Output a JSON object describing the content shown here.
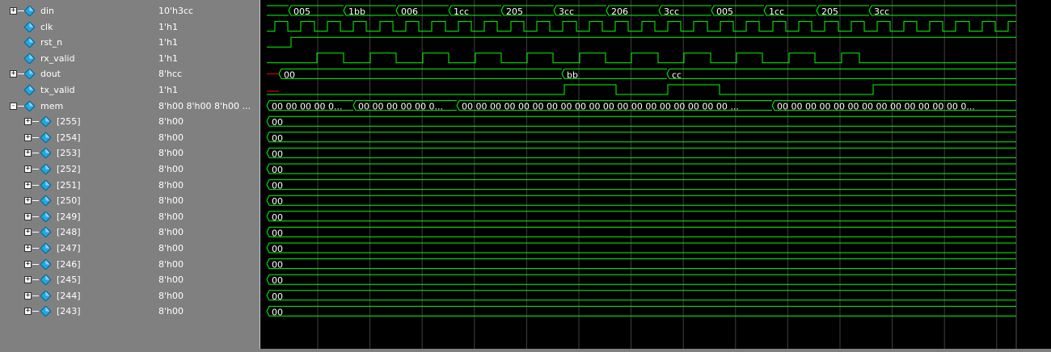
{
  "colors": {
    "signal": "#00ff00",
    "reset_glitch": "#ff0000",
    "grid": "#404040",
    "panel": "#808080",
    "icon": "#1ea7e6"
  },
  "signals": [
    {
      "name": "din",
      "value": "10'h3cc",
      "indent": 0,
      "expandable": true,
      "expander": "+",
      "kind": "bus"
    },
    {
      "name": "clk",
      "value": "1'h1",
      "indent": 1,
      "expandable": false,
      "kind": "clock"
    },
    {
      "name": "rst_n",
      "value": "1'h1",
      "indent": 1,
      "expandable": false,
      "kind": "bit"
    },
    {
      "name": "rx_valid",
      "value": "1'h1",
      "indent": 1,
      "expandable": false,
      "kind": "bit"
    },
    {
      "name": "dout",
      "value": "8'hcc",
      "indent": 0,
      "expandable": true,
      "expander": "+",
      "kind": "bus"
    },
    {
      "name": "tx_valid",
      "value": "1'h1",
      "indent": 1,
      "expandable": false,
      "kind": "bit"
    },
    {
      "name": "mem",
      "value": "8'h00 8'h00 8'h00 ...",
      "indent": 0,
      "expandable": true,
      "expander": "−",
      "kind": "bus"
    },
    {
      "name": "[255]",
      "value": "8'h00",
      "indent": 2,
      "expandable": true,
      "expander": "+",
      "kind": "bus"
    },
    {
      "name": "[254]",
      "value": "8'h00",
      "indent": 2,
      "expandable": true,
      "expander": "+",
      "kind": "bus"
    },
    {
      "name": "[253]",
      "value": "8'h00",
      "indent": 2,
      "expandable": true,
      "expander": "+",
      "kind": "bus"
    },
    {
      "name": "[252]",
      "value": "8'h00",
      "indent": 2,
      "expandable": true,
      "expander": "+",
      "kind": "bus"
    },
    {
      "name": "[251]",
      "value": "8'h00",
      "indent": 2,
      "expandable": true,
      "expander": "+",
      "kind": "bus"
    },
    {
      "name": "[250]",
      "value": "8'h00",
      "indent": 2,
      "expandable": true,
      "expander": "+",
      "kind": "bus"
    },
    {
      "name": "[249]",
      "value": "8'h00",
      "indent": 2,
      "expandable": true,
      "expander": "+",
      "kind": "bus"
    },
    {
      "name": "[248]",
      "value": "8'h00",
      "indent": 2,
      "expandable": true,
      "expander": "+",
      "kind": "bus"
    },
    {
      "name": "[247]",
      "value": "8'h00",
      "indent": 2,
      "expandable": true,
      "expander": "+",
      "kind": "bus"
    },
    {
      "name": "[246]",
      "value": "8'h00",
      "indent": 2,
      "expandable": true,
      "expander": "+",
      "kind": "bus"
    },
    {
      "name": "[245]",
      "value": "8'h00",
      "indent": 2,
      "expandable": true,
      "expander": "+",
      "kind": "bus"
    },
    {
      "name": "[244]",
      "value": "8'h00",
      "indent": 2,
      "expandable": true,
      "expander": "+",
      "kind": "bus"
    },
    {
      "name": "[243]",
      "value": "8'h00",
      "indent": 2,
      "expandable": true,
      "expander": "+",
      "kind": "bus"
    }
  ],
  "waveforms": {
    "din": [
      "005",
      "1bb",
      "006",
      "1cc",
      "205",
      "3cc",
      "206",
      "3cc",
      "005",
      "1cc",
      "205",
      "3cc"
    ],
    "dout": [
      "00",
      "bb",
      "cc"
    ],
    "mem": [
      "00 00 00 00 0...",
      "00 00 00 00 00 0...",
      "00 00 00 00 00 00 00 00 00 00 00 00 00 00 00 00 00 00 00 ...",
      "00 00 00 00 00 00 00 00 00 00 00 00 00 0..."
    ],
    "mem_element": "00"
  }
}
